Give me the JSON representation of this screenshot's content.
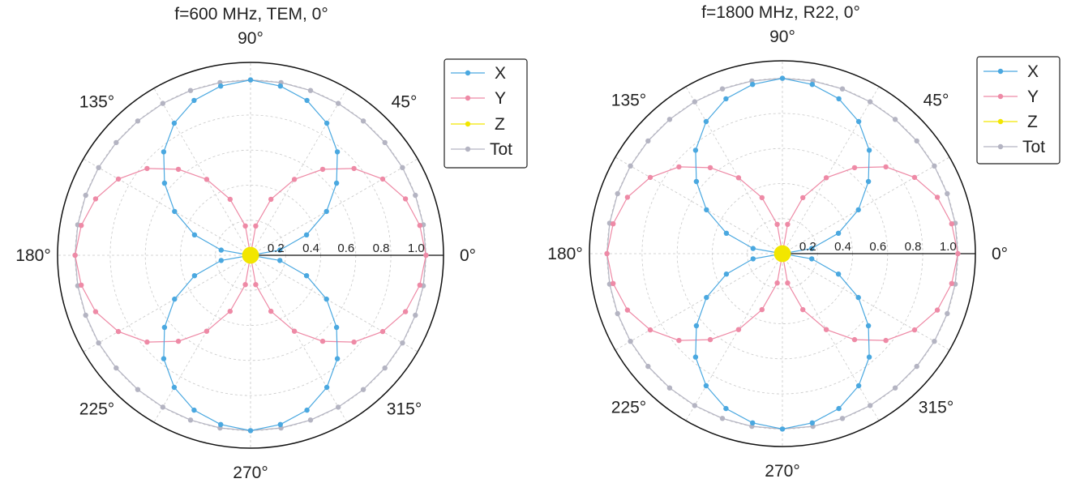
{
  "colors": {
    "X": "#4aa8e0",
    "Y": "#ee8aa6",
    "Z": "#f2e600",
    "Tot": "#b4b4c2",
    "grid": "#c8c8c8",
    "axis": "#111111"
  },
  "chart_data": [
    {
      "type": "polar-line",
      "title": "f=600 MHz, TEM, 0°",
      "angular_labels": [
        "0°",
        "45°",
        "90°",
        "135°",
        "180°",
        "225°",
        "270°",
        "315°"
      ],
      "radial_ticks": [
        "0.2",
        "0.4",
        "0.6",
        "0.8",
        "1.0"
      ],
      "rlim": [
        0,
        1.1
      ],
      "legend": {
        "position": "top-right",
        "entries": [
          "X",
          "Y",
          "Z",
          "Tot"
        ]
      },
      "theta_deg": [
        0,
        10,
        20,
        30,
        40,
        50,
        60,
        70,
        80,
        90,
        100,
        110,
        120,
        130,
        140,
        150,
        160,
        170,
        180,
        190,
        200,
        210,
        220,
        230,
        240,
        250,
        260,
        270,
        280,
        290,
        300,
        310,
        320,
        330,
        340,
        350
      ],
      "series": [
        {
          "name": "X",
          "values": [
            0.0,
            0.17,
            0.34,
            0.5,
            0.64,
            0.77,
            0.87,
            0.94,
            0.98,
            1.0,
            0.98,
            0.94,
            0.87,
            0.77,
            0.64,
            0.5,
            0.34,
            0.17,
            0.0,
            0.17,
            0.34,
            0.5,
            0.64,
            0.77,
            0.87,
            0.94,
            0.98,
            1.0,
            0.98,
            0.94,
            0.87,
            0.77,
            0.64,
            0.5,
            0.34,
            0.17
          ]
        },
        {
          "name": "Y",
          "values": [
            1.0,
            0.98,
            0.94,
            0.87,
            0.77,
            0.64,
            0.5,
            0.34,
            0.17,
            0.0,
            0.17,
            0.34,
            0.5,
            0.64,
            0.77,
            0.87,
            0.94,
            0.98,
            1.0,
            0.98,
            0.94,
            0.87,
            0.77,
            0.64,
            0.5,
            0.34,
            0.17,
            0.0,
            0.17,
            0.34,
            0.5,
            0.64,
            0.77,
            0.87,
            0.94,
            0.98
          ]
        },
        {
          "name": "Z",
          "values": [
            0.02,
            0.02,
            0.02,
            0.02,
            0.02,
            0.02,
            0.02,
            0.02,
            0.02,
            0.02,
            0.02,
            0.02,
            0.02,
            0.02,
            0.02,
            0.02,
            0.02,
            0.02,
            0.02,
            0.02,
            0.02,
            0.02,
            0.02,
            0.02,
            0.02,
            0.02,
            0.02,
            0.02,
            0.02,
            0.02,
            0.02,
            0.02,
            0.02,
            0.02,
            0.02,
            0.02
          ]
        },
        {
          "name": "Tot",
          "values": [
            1.0,
            1.0,
            1.0,
            1.0,
            1.0,
            1.0,
            1.0,
            1.0,
            1.0,
            1.0,
            1.0,
            1.0,
            1.0,
            1.0,
            1.0,
            1.0,
            1.0,
            1.0,
            1.0,
            1.0,
            1.0,
            1.0,
            1.0,
            1.0,
            1.0,
            1.0,
            1.0,
            1.0,
            1.0,
            1.0,
            1.0,
            1.0,
            1.0,
            1.0,
            1.0,
            1.0
          ]
        }
      ]
    },
    {
      "type": "polar-line",
      "title": "f=1800 MHz, R22, 0°",
      "angular_labels": [
        "0°",
        "45°",
        "90°",
        "135°",
        "180°",
        "225°",
        "270°",
        "315°"
      ],
      "radial_ticks": [
        "0.2",
        "0.4",
        "0.6",
        "0.8",
        "1.0"
      ],
      "rlim": [
        0,
        1.1
      ],
      "legend": {
        "position": "top-right",
        "entries": [
          "X",
          "Y",
          "Z",
          "Tot"
        ]
      },
      "theta_deg": [
        0,
        10,
        20,
        30,
        40,
        50,
        60,
        70,
        80,
        90,
        100,
        110,
        120,
        130,
        140,
        150,
        160,
        170,
        180,
        190,
        200,
        210,
        220,
        230,
        240,
        250,
        260,
        270,
        280,
        290,
        300,
        310,
        320,
        330,
        340,
        350
      ],
      "series": [
        {
          "name": "X",
          "values": [
            0.0,
            0.17,
            0.34,
            0.5,
            0.64,
            0.77,
            0.87,
            0.94,
            0.98,
            1.0,
            0.98,
            0.94,
            0.87,
            0.77,
            0.64,
            0.5,
            0.34,
            0.17,
            0.0,
            0.17,
            0.34,
            0.5,
            0.64,
            0.77,
            0.87,
            0.94,
            0.98,
            1.0,
            0.98,
            0.94,
            0.87,
            0.77,
            0.64,
            0.5,
            0.34,
            0.17
          ]
        },
        {
          "name": "Y",
          "values": [
            1.0,
            0.98,
            0.94,
            0.87,
            0.77,
            0.64,
            0.5,
            0.34,
            0.17,
            0.0,
            0.17,
            0.34,
            0.5,
            0.64,
            0.77,
            0.87,
            0.94,
            0.98,
            1.0,
            0.98,
            0.94,
            0.87,
            0.77,
            0.64,
            0.5,
            0.34,
            0.17,
            0.0,
            0.17,
            0.34,
            0.5,
            0.64,
            0.77,
            0.87,
            0.94,
            0.98
          ]
        },
        {
          "name": "Z",
          "values": [
            0.02,
            0.02,
            0.02,
            0.02,
            0.02,
            0.02,
            0.02,
            0.02,
            0.02,
            0.02,
            0.02,
            0.02,
            0.02,
            0.02,
            0.02,
            0.02,
            0.02,
            0.02,
            0.02,
            0.02,
            0.02,
            0.02,
            0.02,
            0.02,
            0.02,
            0.02,
            0.02,
            0.02,
            0.02,
            0.02,
            0.02,
            0.02,
            0.02,
            0.02,
            0.02,
            0.02
          ]
        },
        {
          "name": "Tot",
          "values": [
            1.0,
            1.0,
            1.0,
            1.0,
            1.0,
            1.0,
            1.0,
            1.0,
            1.0,
            1.0,
            1.0,
            1.0,
            1.0,
            1.0,
            1.0,
            1.0,
            1.0,
            1.0,
            1.0,
            1.0,
            1.0,
            1.0,
            1.0,
            1.0,
            1.0,
            1.0,
            1.0,
            1.0,
            1.0,
            1.0,
            1.0,
            1.0,
            1.0,
            1.0,
            1.0,
            1.0
          ]
        }
      ]
    }
  ]
}
